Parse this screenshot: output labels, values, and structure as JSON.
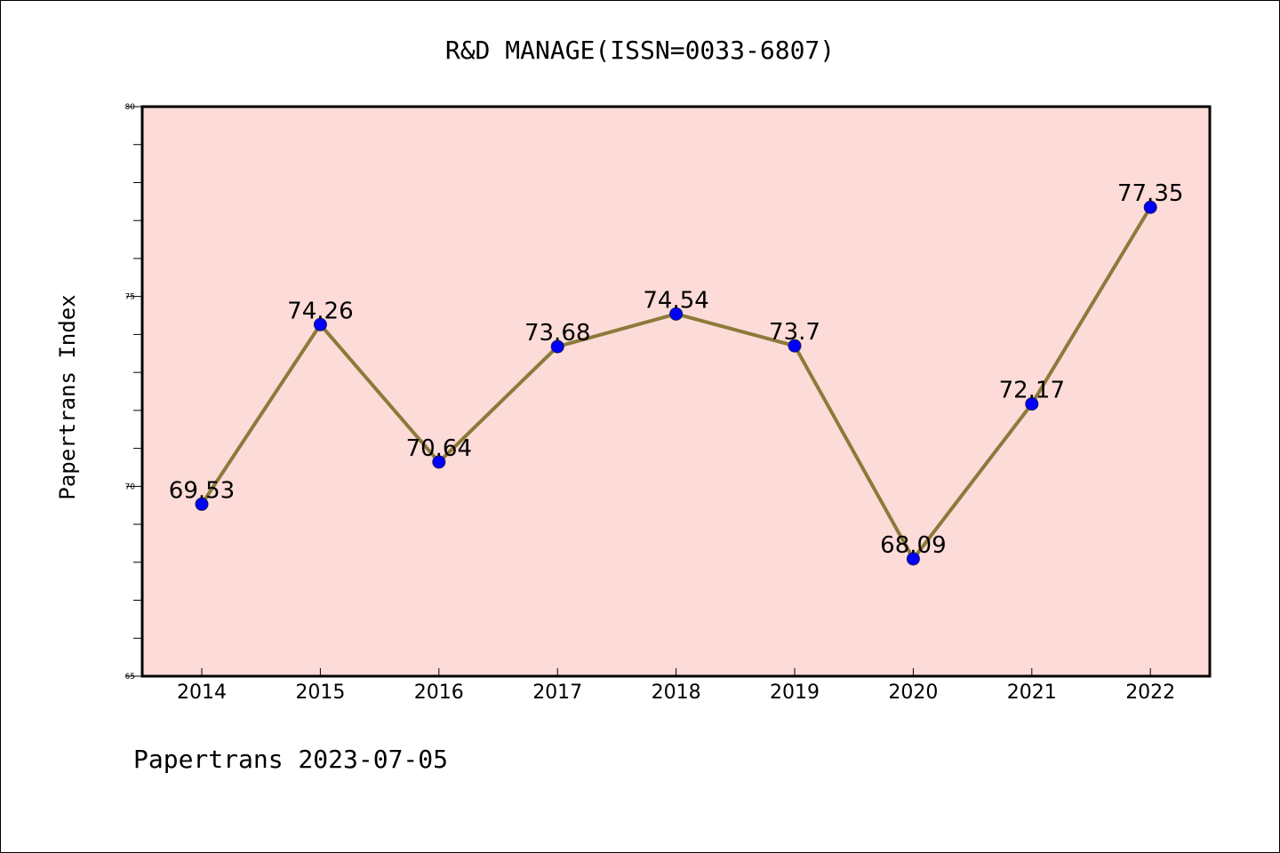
{
  "title": "R&D MANAGE(ISSN=0033-6807)",
  "footer": "Papertrans 2023-07-05",
  "colors": {
    "plot_background": "#fddbd8",
    "line": "#8c7a3a",
    "marker": "#0000ff",
    "axis": "#000000"
  },
  "chart_data": {
    "type": "line",
    "title": "R&D MANAGE(ISSN=0033-6807)",
    "xlabel": "",
    "ylabel": "Papertrans Index",
    "categories": [
      "2014",
      "2015",
      "2016",
      "2017",
      "2018",
      "2019",
      "2020",
      "2021",
      "2022"
    ],
    "series": [
      {
        "values": [
          69.53,
          74.26,
          70.64,
          73.68,
          74.54,
          73.7,
          68.09,
          72.17,
          77.35
        ]
      }
    ],
    "data_labels": [
      "69.53",
      "74.26",
      "70.64",
      "73.68",
      "74.54",
      "73.7",
      "68.09",
      "72.17",
      "77.35"
    ],
    "ylim": [
      65,
      80
    ],
    "y_ticks": [
      65,
      70,
      75,
      80
    ],
    "y_minor_step": 1,
    "grid": false,
    "legend": "none"
  }
}
